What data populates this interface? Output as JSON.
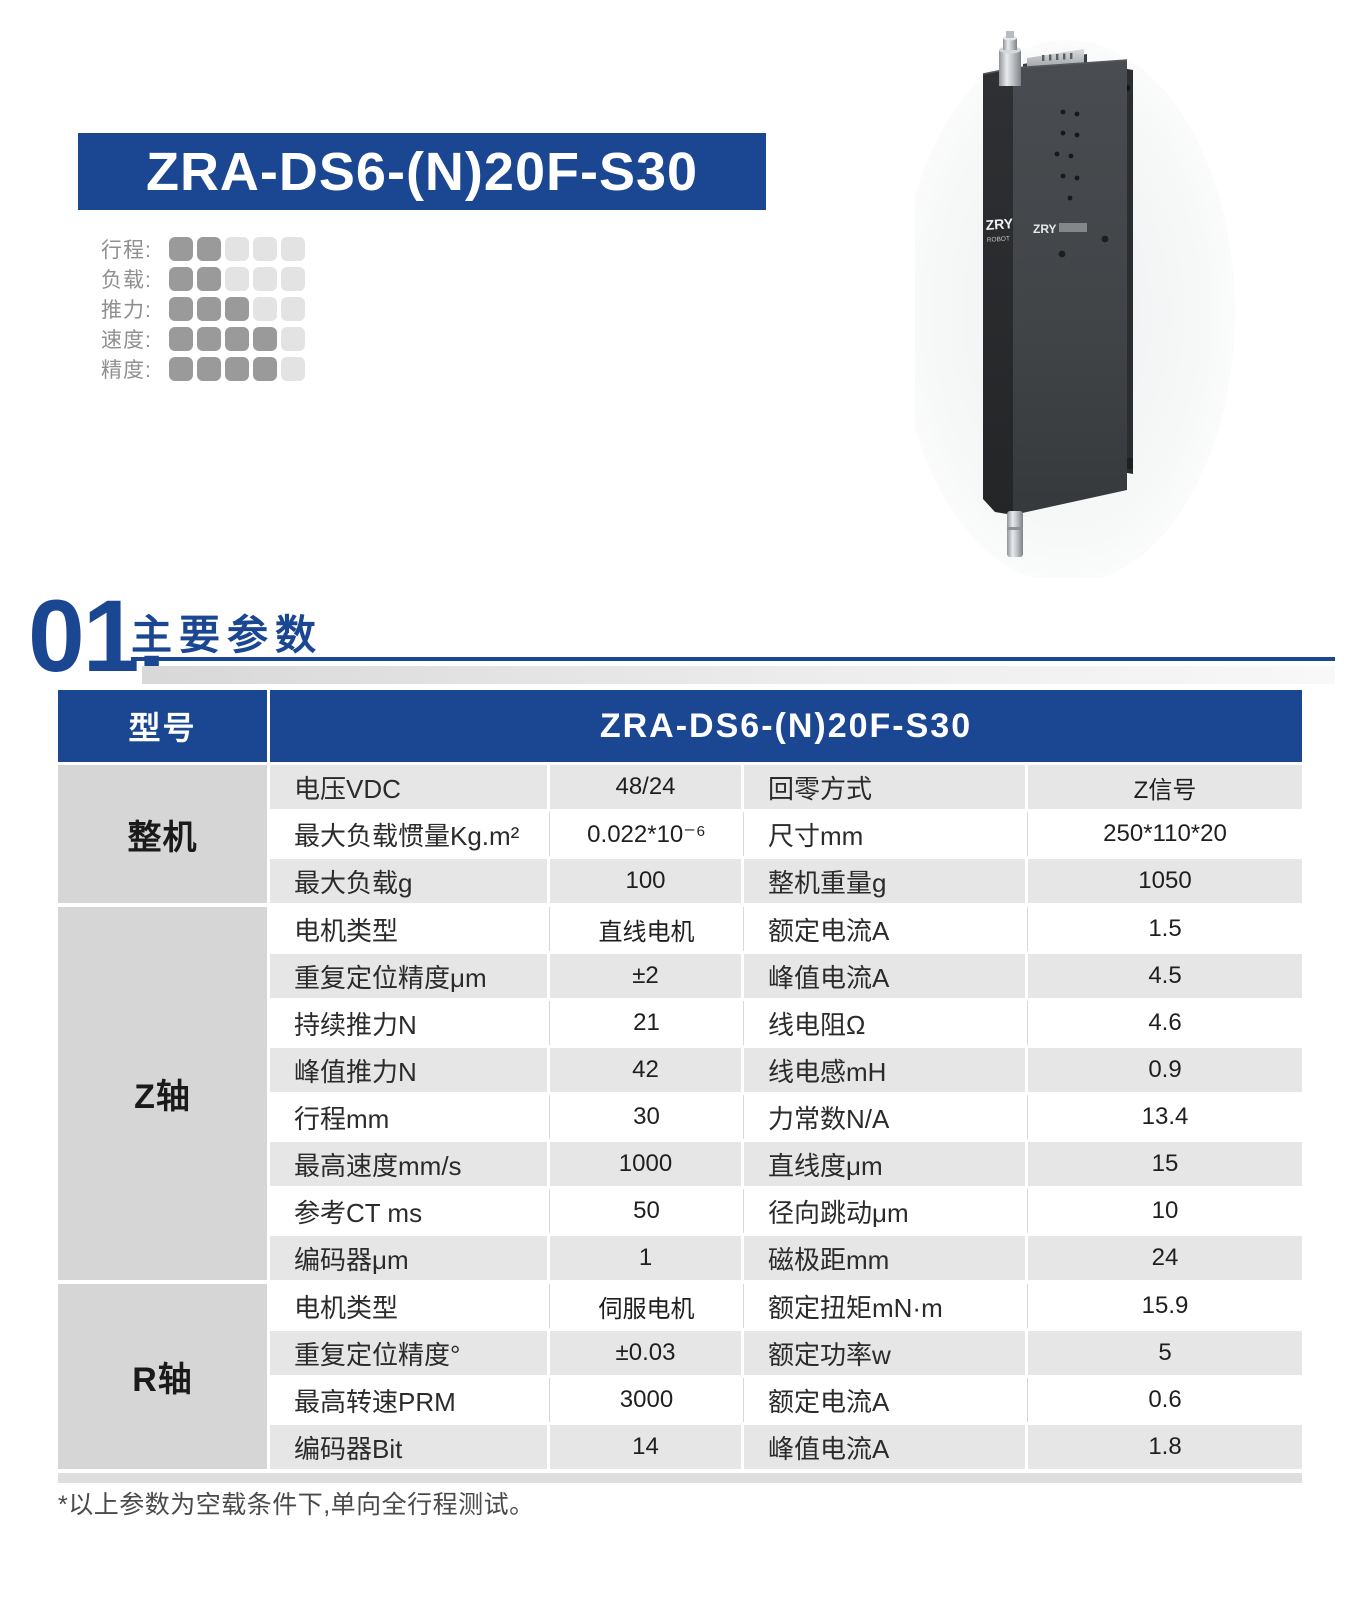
{
  "colors": {
    "brand_blue": "#1b4792",
    "group_gray": "#d6d6d6",
    "row_gray": "#e6e6e6",
    "rating_filled": "#9a9a9a",
    "rating_empty": "#e3e3e3"
  },
  "banner": {
    "model": "ZRA-DS6-(N)20F-S30"
  },
  "ratings": {
    "max": 5,
    "items": [
      {
        "label": "行程:",
        "filled": 2
      },
      {
        "label": "负载:",
        "filled": 2
      },
      {
        "label": "推力:",
        "filled": 3
      },
      {
        "label": "速度:",
        "filled": 4
      },
      {
        "label": "精度:",
        "filled": 4
      }
    ]
  },
  "product": {
    "logo": "ZRY",
    "logo_sub": "ROBOT"
  },
  "section": {
    "number": "01.",
    "title": "主要参数"
  },
  "table": {
    "header_left": "型号",
    "header_model": "ZRA-DS6-(N)20F-S30",
    "sections": [
      {
        "group": "整机",
        "rows": [
          [
            "电压VDC",
            "48/24",
            "回零方式",
            "Z信号"
          ],
          [
            "最大负载惯量Kg.m²",
            "0.022*10⁻⁶",
            "尺寸mm",
            "250*110*20"
          ],
          [
            "最大负载g",
            "100",
            "整机重量g",
            "1050"
          ]
        ]
      },
      {
        "group": "Z轴",
        "rows": [
          [
            "电机类型",
            "直线电机",
            "额定电流A",
            "1.5"
          ],
          [
            "重复定位精度μm",
            "±2",
            "峰值电流A",
            "4.5"
          ],
          [
            "持续推力N",
            "21",
            "线电阻Ω",
            "4.6"
          ],
          [
            "峰值推力N",
            "42",
            "线电感mH",
            "0.9"
          ],
          [
            "行程mm",
            "30",
            "力常数N/A",
            "13.4"
          ],
          [
            "最高速度mm/s",
            "1000",
            "直线度μm",
            "15"
          ],
          [
            "参考CT ms",
            "50",
            "径向跳动μm",
            "10"
          ],
          [
            "编码器μm",
            "1",
            "磁极距mm",
            "24"
          ]
        ]
      },
      {
        "group": "R轴",
        "rows": [
          [
            "电机类型",
            "伺服电机",
            "额定扭矩mN·m",
            "15.9"
          ],
          [
            "重复定位精度°",
            "±0.03",
            "额定功率w",
            "5"
          ],
          [
            "最高转速PRM",
            "3000",
            "额定电流A",
            "0.6"
          ],
          [
            "编码器Bit",
            "14",
            "峰值电流A",
            "1.8"
          ]
        ]
      }
    ]
  },
  "footnote": "*以上参数为空载条件下,单向全行程测试。"
}
